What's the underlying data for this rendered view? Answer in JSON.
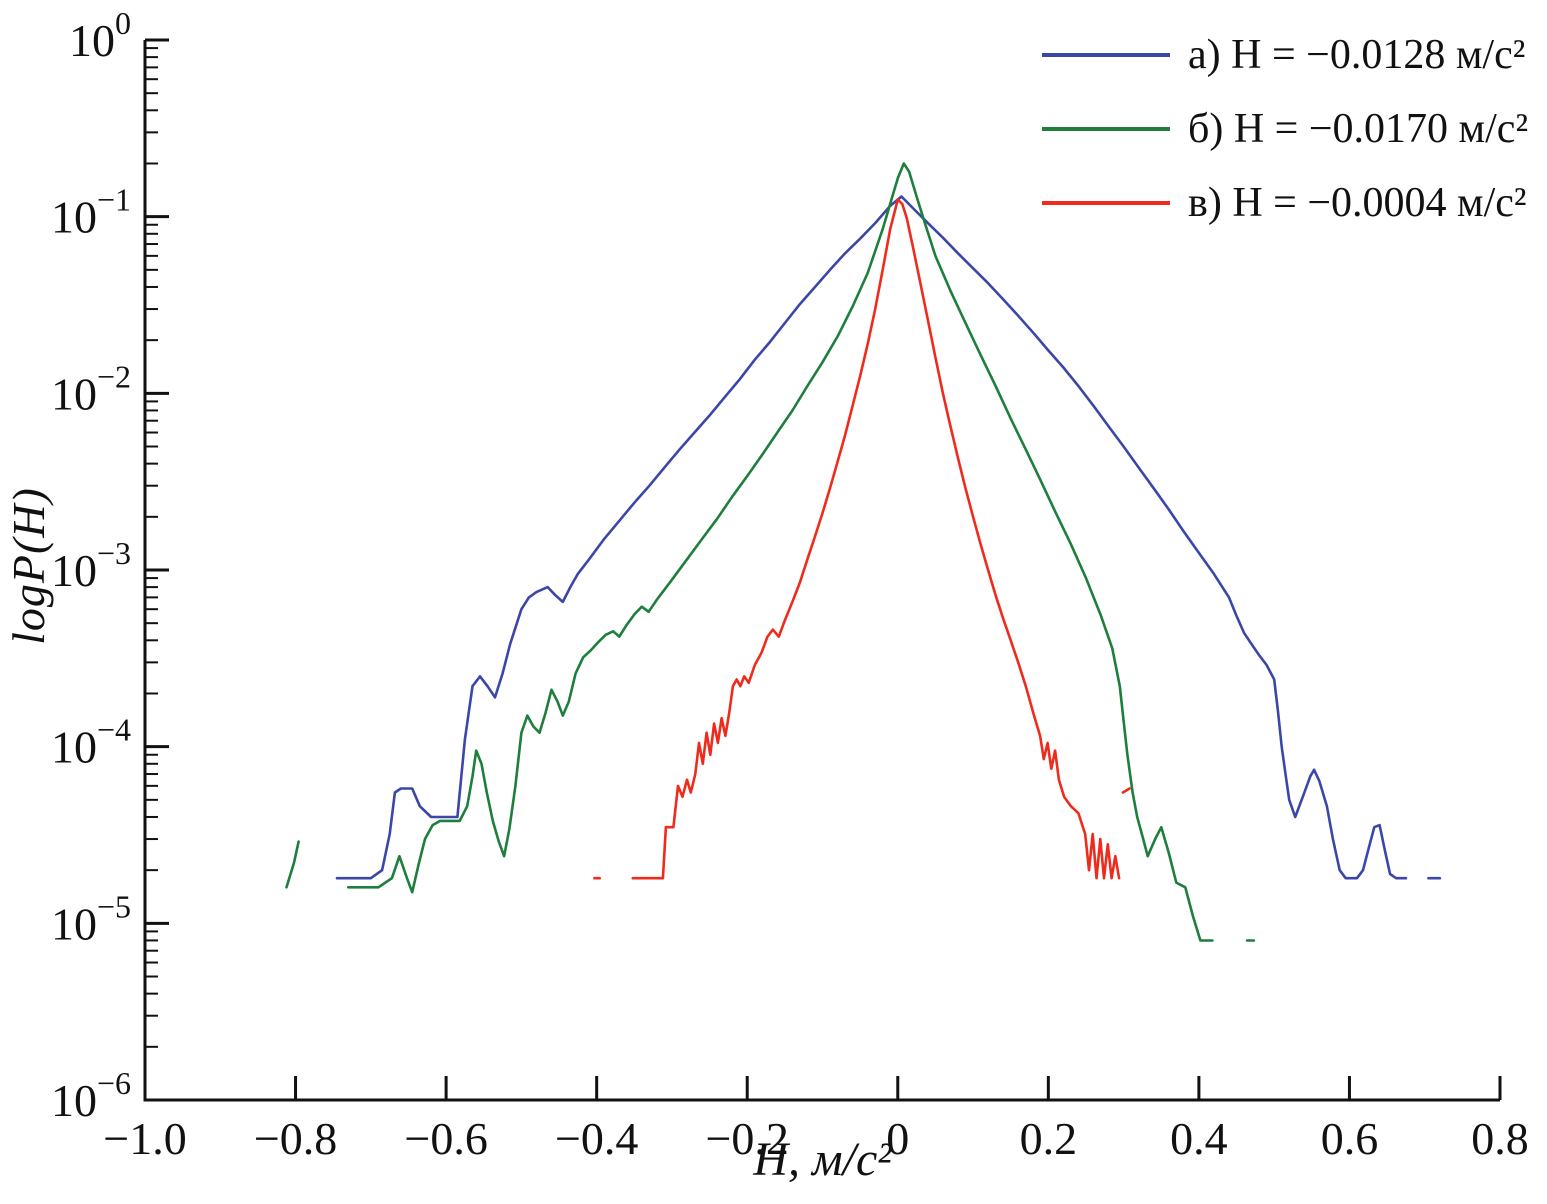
{
  "chart_data": {
    "type": "line",
    "title": "",
    "xlabel": "H, м/с²",
    "ylabel": "logP(H)",
    "grid": false,
    "legend_position": "top-right",
    "x_axis": {
      "min": -1.0,
      "max": 0.8,
      "ticks": [
        -1.0,
        -0.8,
        -0.6,
        -0.4,
        -0.2,
        0,
        0.2,
        0.4,
        0.6,
        0.8
      ],
      "tick_labels": [
        "−1.0",
        "−0.8",
        "−0.6",
        "−0.4",
        "−0.2",
        "0",
        "0.2",
        "0.4",
        "0.6",
        "0.8"
      ]
    },
    "y_axis": {
      "scale": "log",
      "min_exp": -6,
      "max_exp": 0,
      "tick_exps": [
        0,
        -1,
        -2,
        -3,
        -4,
        -5,
        -6
      ]
    },
    "legend": [
      {
        "label": "а) H = −0.0128 м/с²",
        "color": "#3a47a8"
      },
      {
        "label": "б) H = −0.0170 м/с²",
        "color": "#1e7e3c"
      },
      {
        "label": "в) H = −0.0004 м/с²",
        "color": "#ee2b1c"
      }
    ],
    "series": [
      {
        "name": "а) H = −0.0128 м/с²",
        "color": "#3a47a8",
        "points": [
          [
            -0.745,
            1.8e-05
          ],
          [
            -0.72,
            1.8e-05
          ],
          [
            -0.7,
            1.8e-05
          ],
          [
            -0.685,
            2e-05
          ],
          [
            -0.675,
            3.2e-05
          ],
          [
            -0.668,
            5.5e-05
          ],
          [
            -0.66,
            5.8e-05
          ],
          [
            -0.645,
            5.8e-05
          ],
          [
            -0.635,
            4.6e-05
          ],
          [
            -0.62,
            4e-05
          ],
          [
            -0.6,
            4e-05
          ],
          [
            -0.585,
            4e-05
          ],
          [
            -0.575,
            0.00011
          ],
          [
            -0.565,
            0.00022
          ],
          [
            -0.555,
            0.00025
          ],
          [
            -0.545,
            0.00022
          ],
          [
            -0.535,
            0.00019
          ],
          [
            -0.525,
            0.00026
          ],
          [
            -0.515,
            0.00038
          ],
          [
            -0.5,
            0.0006
          ],
          [
            -0.49,
            0.0007
          ],
          [
            -0.48,
            0.00075
          ],
          [
            -0.465,
            0.0008
          ],
          [
            -0.455,
            0.00072
          ],
          [
            -0.445,
            0.00066
          ],
          [
            -0.435,
            0.0008
          ],
          [
            -0.425,
            0.00095
          ],
          [
            -0.41,
            0.00115
          ],
          [
            -0.39,
            0.0015
          ],
          [
            -0.37,
            0.0019
          ],
          [
            -0.35,
            0.0024
          ],
          [
            -0.33,
            0.003
          ],
          [
            -0.31,
            0.0038
          ],
          [
            -0.29,
            0.0048
          ],
          [
            -0.27,
            0.006
          ],
          [
            -0.25,
            0.0075
          ],
          [
            -0.23,
            0.0095
          ],
          [
            -0.21,
            0.012
          ],
          [
            -0.19,
            0.0155
          ],
          [
            -0.17,
            0.0195
          ],
          [
            -0.15,
            0.025
          ],
          [
            -0.13,
            0.032
          ],
          [
            -0.11,
            0.04
          ],
          [
            -0.09,
            0.05
          ],
          [
            -0.07,
            0.062
          ],
          [
            -0.05,
            0.075
          ],
          [
            -0.03,
            0.092
          ],
          [
            -0.01,
            0.115
          ],
          [
            0.005,
            0.13
          ],
          [
            0.02,
            0.112
          ],
          [
            0.04,
            0.092
          ],
          [
            0.06,
            0.076
          ],
          [
            0.08,
            0.062
          ],
          [
            0.1,
            0.051
          ],
          [
            0.12,
            0.042
          ],
          [
            0.14,
            0.034
          ],
          [
            0.16,
            0.0275
          ],
          [
            0.18,
            0.022
          ],
          [
            0.2,
            0.0175
          ],
          [
            0.22,
            0.014
          ],
          [
            0.24,
            0.011
          ],
          [
            0.26,
            0.0085
          ],
          [
            0.28,
            0.0065
          ],
          [
            0.3,
            0.005
          ],
          [
            0.32,
            0.0038
          ],
          [
            0.34,
            0.0029
          ],
          [
            0.36,
            0.0022
          ],
          [
            0.38,
            0.00165
          ],
          [
            0.4,
            0.00125
          ],
          [
            0.42,
            0.00095
          ],
          [
            0.44,
            0.0007
          ],
          [
            0.45,
            0.00055
          ],
          [
            0.46,
            0.00044
          ],
          [
            0.47,
            0.00038
          ],
          [
            0.48,
            0.00033
          ],
          [
            0.49,
            0.00029
          ],
          [
            0.5,
            0.00024
          ],
          [
            0.505,
            0.00016
          ],
          [
            0.51,
            0.0001
          ],
          [
            0.515,
            7e-05
          ],
          [
            0.52,
            5e-05
          ],
          [
            0.528,
            4e-05
          ],
          [
            0.538,
            5.2e-05
          ],
          [
            0.548,
            6.8e-05
          ],
          [
            0.553,
            7.4e-05
          ],
          [
            0.56,
            6.4e-05
          ],
          [
            0.57,
            4.6e-05
          ],
          [
            0.578,
            3e-05
          ],
          [
            0.587,
            2e-05
          ],
          [
            0.595,
            1.8e-05
          ],
          [
            0.61,
            1.8e-05
          ],
          [
            0.618,
            2e-05
          ],
          [
            0.626,
            2.7e-05
          ],
          [
            0.633,
            3.5e-05
          ],
          [
            0.64,
            3.6e-05
          ],
          [
            0.647,
            2.6e-05
          ],
          [
            0.654,
            1.9e-05
          ],
          [
            0.662,
            1.8e-05
          ],
          [
            0.675,
            1.8e-05
          ],
          null,
          [
            0.705,
            1.8e-05
          ],
          [
            0.72,
            1.8e-05
          ]
        ]
      },
      {
        "name": "б) H = −0.0170 м/с²",
        "color": "#1e7e3c",
        "points": [
          [
            -0.812,
            1.6e-05
          ],
          [
            -0.802,
            2.2e-05
          ],
          [
            -0.796,
            2.9e-05
          ],
          null,
          [
            -0.73,
            1.6e-05
          ],
          [
            -0.71,
            1.6e-05
          ],
          [
            -0.69,
            1.6e-05
          ],
          [
            -0.672,
            1.8e-05
          ],
          [
            -0.662,
            2.4e-05
          ],
          [
            -0.652,
            1.8e-05
          ],
          [
            -0.645,
            1.5e-05
          ],
          [
            -0.636,
            2.2e-05
          ],
          [
            -0.628,
            3e-05
          ],
          [
            -0.618,
            3.6e-05
          ],
          [
            -0.608,
            3.8e-05
          ],
          [
            -0.595,
            3.8e-05
          ],
          [
            -0.582,
            3.8e-05
          ],
          [
            -0.572,
            4.6e-05
          ],
          [
            -0.565,
            6.8e-05
          ],
          [
            -0.56,
            9.5e-05
          ],
          [
            -0.553,
            8e-05
          ],
          [
            -0.546,
            5.5e-05
          ],
          [
            -0.538,
            3.8e-05
          ],
          [
            -0.53,
            2.9e-05
          ],
          [
            -0.523,
            2.4e-05
          ],
          [
            -0.516,
            3.4e-05
          ],
          [
            -0.508,
            6e-05
          ],
          [
            -0.5,
            0.00012
          ],
          [
            -0.492,
            0.00015
          ],
          [
            -0.484,
            0.00013
          ],
          [
            -0.476,
            0.00012
          ],
          [
            -0.468,
            0.000155
          ],
          [
            -0.46,
            0.00021
          ],
          [
            -0.452,
            0.00018
          ],
          [
            -0.445,
            0.00015
          ],
          [
            -0.437,
            0.00018
          ],
          [
            -0.428,
            0.00026
          ],
          [
            -0.418,
            0.00032
          ],
          [
            -0.408,
            0.00035
          ],
          [
            -0.398,
            0.00039
          ],
          [
            -0.388,
            0.00043
          ],
          [
            -0.378,
            0.00045
          ],
          [
            -0.37,
            0.00042
          ],
          [
            -0.36,
            0.00049
          ],
          [
            -0.35,
            0.00056
          ],
          [
            -0.34,
            0.00062
          ],
          [
            -0.331,
            0.00058
          ],
          [
            -0.32,
            0.00068
          ],
          [
            -0.3,
            0.00088
          ],
          [
            -0.28,
            0.00115
          ],
          [
            -0.26,
            0.0015
          ],
          [
            -0.24,
            0.00195
          ],
          [
            -0.22,
            0.0026
          ],
          [
            -0.2,
            0.0034
          ],
          [
            -0.18,
            0.0045
          ],
          [
            -0.16,
            0.006
          ],
          [
            -0.14,
            0.008
          ],
          [
            -0.12,
            0.011
          ],
          [
            -0.1,
            0.015
          ],
          [
            -0.08,
            0.021
          ],
          [
            -0.06,
            0.031
          ],
          [
            -0.04,
            0.048
          ],
          [
            -0.02,
            0.085
          ],
          [
            0.0,
            0.165
          ],
          [
            0.008,
            0.2
          ],
          [
            0.015,
            0.18
          ],
          [
            0.025,
            0.13
          ],
          [
            0.035,
            0.095
          ],
          [
            0.05,
            0.06
          ],
          [
            0.07,
            0.038
          ],
          [
            0.09,
            0.025
          ],
          [
            0.11,
            0.0165
          ],
          [
            0.13,
            0.011
          ],
          [
            0.15,
            0.0072
          ],
          [
            0.17,
            0.0048
          ],
          [
            0.19,
            0.0032
          ],
          [
            0.21,
            0.0021
          ],
          [
            0.23,
            0.0014
          ],
          [
            0.25,
            0.0009
          ],
          [
            0.27,
            0.00055
          ],
          [
            0.285,
            0.00036
          ],
          [
            0.295,
            0.00022
          ],
          [
            0.3,
            0.00014
          ],
          [
            0.305,
            9e-05
          ],
          [
            0.312,
            5.5e-05
          ],
          [
            0.318,
            4e-05
          ],
          [
            0.326,
            3e-05
          ],
          [
            0.332,
            2.4e-05
          ],
          [
            0.342,
            3e-05
          ],
          [
            0.35,
            3.5e-05
          ],
          [
            0.36,
            2.5e-05
          ],
          [
            0.37,
            1.7e-05
          ],
          [
            0.382,
            1.6e-05
          ],
          [
            0.392,
            1.1e-05
          ],
          [
            0.402,
            8e-06
          ],
          [
            0.418,
            8e-06
          ],
          null,
          [
            0.464,
            8e-06
          ],
          [
            0.473,
            8e-06
          ]
        ]
      },
      {
        "name": "в) H = −0.0004 м/с²",
        "color": "#ee2b1c",
        "points": [
          [
            -0.403,
            1.8e-05
          ],
          [
            -0.396,
            1.8e-05
          ],
          null,
          [
            -0.352,
            1.8e-05
          ],
          [
            -0.335,
            1.8e-05
          ],
          [
            -0.32,
            1.8e-05
          ],
          [
            -0.312,
            1.8e-05
          ],
          [
            -0.308,
            3.5e-05
          ],
          [
            -0.298,
            3.5e-05
          ],
          [
            -0.292,
            6e-05
          ],
          [
            -0.286,
            5.2e-05
          ],
          [
            -0.28,
            6.5e-05
          ],
          [
            -0.275,
            5.5e-05
          ],
          [
            -0.269,
            7e-05
          ],
          [
            -0.264,
            0.000105
          ],
          [
            -0.259,
            8e-05
          ],
          [
            -0.254,
            0.00012
          ],
          [
            -0.249,
            9e-05
          ],
          [
            -0.244,
            0.000135
          ],
          [
            -0.239,
            0.000105
          ],
          [
            -0.234,
            0.000145
          ],
          [
            -0.229,
            0.000115
          ],
          [
            -0.224,
            0.000155
          ],
          [
            -0.219,
            0.00022
          ],
          [
            -0.214,
            0.00024
          ],
          [
            -0.209,
            0.00022
          ],
          [
            -0.204,
            0.00025
          ],
          [
            -0.198,
            0.00023
          ],
          [
            -0.19,
            0.00029
          ],
          [
            -0.181,
            0.00034
          ],
          [
            -0.173,
            0.00042
          ],
          [
            -0.166,
            0.00046
          ],
          [
            -0.158,
            0.00042
          ],
          [
            -0.15,
            0.00052
          ],
          [
            -0.14,
            0.00066
          ],
          [
            -0.13,
            0.00085
          ],
          [
            -0.12,
            0.00115
          ],
          [
            -0.11,
            0.00155
          ],
          [
            -0.1,
            0.0021
          ],
          [
            -0.09,
            0.0029
          ],
          [
            -0.08,
            0.0041
          ],
          [
            -0.07,
            0.0058
          ],
          [
            -0.06,
            0.0085
          ],
          [
            -0.05,
            0.0125
          ],
          [
            -0.04,
            0.019
          ],
          [
            -0.03,
            0.03
          ],
          [
            -0.02,
            0.05
          ],
          [
            -0.01,
            0.085
          ],
          [
            0.0,
            0.125
          ],
          [
            0.006,
            0.118
          ],
          [
            0.012,
            0.098
          ],
          [
            0.02,
            0.068
          ],
          [
            0.03,
            0.042
          ],
          [
            0.04,
            0.026
          ],
          [
            0.05,
            0.016
          ],
          [
            0.06,
            0.01
          ],
          [
            0.07,
            0.0065
          ],
          [
            0.08,
            0.0043
          ],
          [
            0.09,
            0.0029
          ],
          [
            0.1,
            0.002
          ],
          [
            0.11,
            0.0014
          ],
          [
            0.12,
            0.001
          ],
          [
            0.13,
            0.00072
          ],
          [
            0.14,
            0.00053
          ],
          [
            0.15,
            0.0004
          ],
          [
            0.16,
            0.0003
          ],
          [
            0.17,
            0.00022
          ],
          [
            0.18,
            0.000155
          ],
          [
            0.189,
            0.000115
          ],
          [
            0.194,
            8.5e-05
          ],
          [
            0.199,
            0.000105
          ],
          [
            0.204,
            7.5e-05
          ],
          [
            0.209,
            9.5e-05
          ],
          [
            0.214,
            6.5e-05
          ],
          [
            0.221,
            5.2e-05
          ],
          [
            0.23,
            4.6e-05
          ],
          [
            0.24,
            4.2e-05
          ],
          [
            0.249,
            3.2e-05
          ],
          [
            0.254,
            2e-05
          ],
          [
            0.259,
            3.2e-05
          ],
          [
            0.264,
            1.8e-05
          ],
          [
            0.269,
            3e-05
          ],
          [
            0.274,
            1.8e-05
          ],
          [
            0.279,
            2.8e-05
          ],
          [
            0.284,
            1.8e-05
          ],
          [
            0.289,
            2.4e-05
          ],
          [
            0.294,
            1.8e-05
          ],
          null,
          [
            0.299,
            5.5e-05
          ],
          [
            0.308,
            5.8e-05
          ]
        ]
      }
    ]
  }
}
